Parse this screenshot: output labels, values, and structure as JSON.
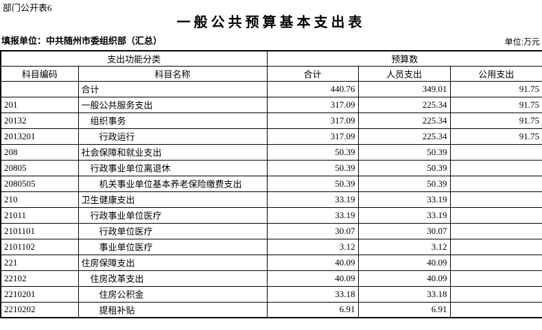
{
  "page": {
    "corner_label": "部门公开表6",
    "title": "一般公共预算基本支出表",
    "reporting_unit": "填报单位：中共随州市委组织部（汇总）",
    "unit_label": "单位:万元"
  },
  "colors": {
    "background": "#ffffff",
    "text": "#000000",
    "border": "#000000"
  },
  "table": {
    "header": {
      "function_group": "支出功能分类",
      "budget_group": "预算数",
      "columns": [
        "科目编码",
        "科目名称",
        "合计",
        "人员支出",
        "公用支出"
      ]
    },
    "rows": [
      {
        "code": "",
        "name": "合计",
        "indent": 0,
        "total": "440.76",
        "personnel": "349.01",
        "public": "91.75"
      },
      {
        "code": "201",
        "name": "一般公共服务支出",
        "indent": 0,
        "total": "317.09",
        "personnel": "225.34",
        "public": "91.75"
      },
      {
        "code": "20132",
        "name": "组织事务",
        "indent": 1,
        "total": "317.09",
        "personnel": "225.34",
        "public": "91.75"
      },
      {
        "code": "2013201",
        "name": "行政运行",
        "indent": 2,
        "total": "317.09",
        "personnel": "225.34",
        "public": "91.75"
      },
      {
        "code": "208",
        "name": "社会保障和就业支出",
        "indent": 0,
        "total": "50.39",
        "personnel": "50.39",
        "public": ""
      },
      {
        "code": "20805",
        "name": "行政事业单位离退休",
        "indent": 1,
        "total": "50.39",
        "personnel": "50.39",
        "public": ""
      },
      {
        "code": "2080505",
        "name": "机关事业单位基本养老保险缴费支出",
        "indent": 2,
        "total": "50.39",
        "personnel": "50.39",
        "public": ""
      },
      {
        "code": "210",
        "name": "卫生健康支出",
        "indent": 0,
        "total": "33.19",
        "personnel": "33.19",
        "public": ""
      },
      {
        "code": "21011",
        "name": "行政事业单位医疗",
        "indent": 1,
        "total": "33.19",
        "personnel": "33.19",
        "public": ""
      },
      {
        "code": "2101101",
        "name": "行政单位医疗",
        "indent": 2,
        "total": "30.07",
        "personnel": "30.07",
        "public": ""
      },
      {
        "code": "2101102",
        "name": "事业单位医疗",
        "indent": 2,
        "total": "3.12",
        "personnel": "3.12",
        "public": ""
      },
      {
        "code": "221",
        "name": "住房保障支出",
        "indent": 0,
        "total": "40.09",
        "personnel": "40.09",
        "public": ""
      },
      {
        "code": "22102",
        "name": "住房改革支出",
        "indent": 1,
        "total": "40.09",
        "personnel": "40.09",
        "public": ""
      },
      {
        "code": "2210201",
        "name": "住房公积金",
        "indent": 2,
        "total": "33.18",
        "personnel": "33.18",
        "public": ""
      },
      {
        "code": "2210202",
        "name": "提租补贴",
        "indent": 2,
        "total": "6.91",
        "personnel": "6.91",
        "public": ""
      }
    ]
  }
}
